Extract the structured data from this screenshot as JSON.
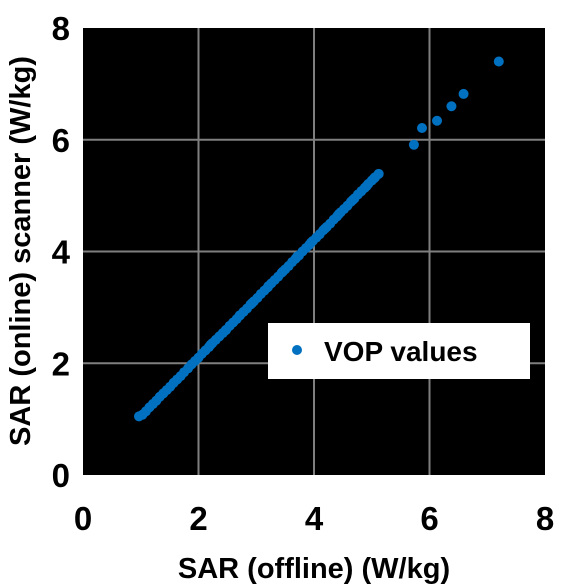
{
  "chart_data": {
    "type": "scatter",
    "xlabel": "SAR (offline) (W/kg)",
    "ylabel": "SAR (online) scanner (W/kg)",
    "xlim": [
      0,
      8
    ],
    "ylim": [
      0,
      8
    ],
    "xticks": [
      "0",
      "2",
      "4",
      "6",
      "8"
    ],
    "yticks": [
      "0",
      "2",
      "4",
      "6",
      "8"
    ],
    "grid": true,
    "background": "#000000",
    "grid_color": "#7f7f7f",
    "legend_position": "center-right",
    "series": [
      {
        "name": "VOP values",
        "color": "#0070c0",
        "points": [
          [
            0.97,
            1.05
          ],
          [
            1.03,
            1.08
          ],
          [
            1.09,
            1.14
          ],
          [
            1.15,
            1.21
          ],
          [
            1.21,
            1.27
          ],
          [
            1.27,
            1.33
          ],
          [
            1.33,
            1.4
          ],
          [
            1.39,
            1.46
          ],
          [
            1.45,
            1.52
          ],
          [
            1.51,
            1.58
          ],
          [
            1.57,
            1.65
          ],
          [
            1.63,
            1.71
          ],
          [
            1.69,
            1.77
          ],
          [
            1.75,
            1.84
          ],
          [
            1.82,
            1.91
          ],
          [
            1.88,
            1.98
          ],
          [
            1.94,
            2.04
          ],
          [
            2.0,
            2.1
          ],
          [
            2.06,
            2.17
          ],
          [
            2.12,
            2.23
          ],
          [
            2.18,
            2.29
          ],
          [
            2.24,
            2.36
          ],
          [
            2.3,
            2.42
          ],
          [
            2.36,
            2.48
          ],
          [
            2.42,
            2.54
          ],
          [
            2.48,
            2.6
          ],
          [
            2.54,
            2.67
          ],
          [
            2.6,
            2.73
          ],
          [
            2.66,
            2.79
          ],
          [
            2.72,
            2.86
          ],
          [
            2.78,
            2.92
          ],
          [
            2.84,
            2.98
          ],
          [
            2.9,
            3.05
          ],
          [
            2.96,
            3.11
          ],
          [
            3.02,
            3.17
          ],
          [
            3.08,
            3.24
          ],
          [
            3.14,
            3.3
          ],
          [
            3.2,
            3.36
          ],
          [
            3.26,
            3.43
          ],
          [
            3.32,
            3.49
          ],
          [
            3.38,
            3.55
          ],
          [
            3.44,
            3.62
          ],
          [
            3.5,
            3.68
          ],
          [
            3.56,
            3.74
          ],
          [
            3.62,
            3.81
          ],
          [
            3.68,
            3.87
          ],
          [
            3.74,
            3.93
          ],
          [
            3.8,
            4.0
          ],
          [
            3.86,
            4.06
          ],
          [
            3.92,
            4.12
          ],
          [
            3.98,
            4.19
          ],
          [
            4.04,
            4.25
          ],
          [
            4.1,
            4.31
          ],
          [
            4.16,
            4.38
          ],
          [
            4.22,
            4.44
          ],
          [
            4.28,
            4.5
          ],
          [
            4.34,
            4.57
          ],
          [
            4.4,
            4.63
          ],
          [
            4.46,
            4.7
          ],
          [
            4.52,
            4.76
          ],
          [
            4.58,
            4.82
          ],
          [
            4.64,
            4.89
          ],
          [
            4.7,
            4.95
          ],
          [
            4.76,
            5.02
          ],
          [
            4.82,
            5.08
          ],
          [
            4.88,
            5.14
          ],
          [
            4.94,
            5.21
          ],
          [
            5.0,
            5.27
          ],
          [
            5.06,
            5.33
          ],
          [
            5.12,
            5.39
          ],
          [
            2.21,
            2.33
          ],
          [
            2.47,
            2.59
          ],
          [
            2.71,
            2.85
          ],
          [
            2.93,
            3.08
          ],
          [
            3.21,
            3.38
          ],
          [
            3.46,
            3.64
          ],
          [
            3.71,
            3.91
          ],
          [
            3.95,
            4.16
          ],
          [
            4.19,
            4.41
          ],
          [
            4.43,
            4.67
          ],
          [
            4.67,
            4.92
          ],
          [
            4.91,
            5.17
          ],
          [
            5.04,
            5.31
          ],
          [
            5.73,
            5.91
          ],
          [
            5.87,
            6.21
          ],
          [
            6.13,
            6.34
          ],
          [
            6.38,
            6.6
          ],
          [
            6.59,
            6.82
          ],
          [
            7.2,
            7.4
          ]
        ]
      }
    ]
  }
}
